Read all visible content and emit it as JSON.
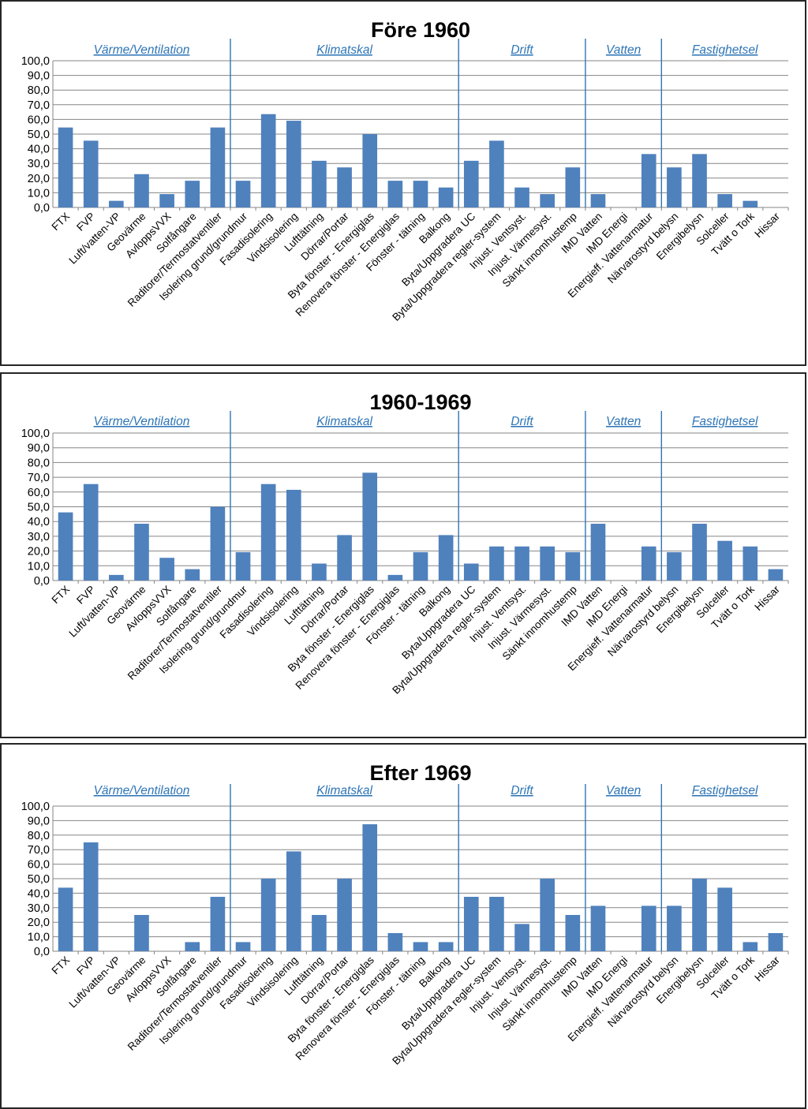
{
  "chart_data": [
    {
      "type": "bar",
      "title": "Före 1960",
      "ylim": [
        0,
        100
      ],
      "yticks": [
        "0,0",
        "10,0",
        "20,0",
        "30,0",
        "40,0",
        "50,0",
        "60,0",
        "70,0",
        "80,0",
        "90,0",
        "100,0"
      ],
      "grid": true,
      "categories": [
        "FTX",
        "FVP",
        "Luft/vatten-VP",
        "Geovärme",
        "AvloppsVVX",
        "Solfångare",
        "Raditorer/Termostatventiler",
        "Isolering grund/grundmur",
        "Fasadisolering",
        "Vindsisolering",
        "Lufttätning",
        "Dörrar/Portar",
        "Byta fönster - Energiglas",
        "Renovera fönster - Energiglas",
        "Fönster - tätning",
        "Balkong",
        "Byta/Uppgradera UC",
        "Byta/Uppgradera regler-system",
        "Injust. Ventsyst.",
        "Injust. Värmesyst.",
        "Sänkt innomhustemp",
        "IMD Vatten",
        "IMD Energi",
        "Energieff. Vattenarmatur",
        "Närvarostyrd belysn",
        "Energibelysn",
        "Solceller",
        "Tvätt o Tork",
        "Hissar"
      ],
      "values": [
        54.5,
        45.5,
        4.5,
        22.7,
        9.1,
        18.2,
        54.5,
        18.2,
        63.6,
        59.1,
        31.8,
        27.3,
        50.0,
        18.2,
        18.2,
        13.6,
        31.8,
        45.5,
        13.6,
        9.1,
        27.3,
        9.1,
        0,
        36.4,
        27.3,
        36.4,
        9.1,
        4.5,
        0
      ],
      "groups": [
        {
          "label": "Värme/Ventilation",
          "start": 0,
          "end": 6
        },
        {
          "label": "Klimatskal",
          "start": 7,
          "end": 15
        },
        {
          "label": "Drift",
          "start": 16,
          "end": 20
        },
        {
          "label": "Vatten",
          "start": 21,
          "end": 23
        },
        {
          "label": "Fastighetsel",
          "start": 24,
          "end": 28
        }
      ]
    },
    {
      "type": "bar",
      "title": "1960-1969",
      "ylim": [
        0,
        100
      ],
      "yticks": [
        "0,0",
        "10,0",
        "20,0",
        "30,0",
        "40,0",
        "50,0",
        "60,0",
        "70,0",
        "80,0",
        "90,0",
        "100,0"
      ],
      "grid": true,
      "categories": [
        "FTX",
        "FVP",
        "Luft/vatten-VP",
        "Geovärme",
        "AvloppsVVX",
        "Solfångare",
        "Raditorer/Termostatventiler",
        "Isolering grund/grundmur",
        "Fasadisolering",
        "Vindsisolering",
        "Lufttätning",
        "Dörrar/Portar",
        "Byta fönster - Energiglas",
        "Renovera fönster - Energiglas",
        "Fönster - tätning",
        "Balkong",
        "Byta/Uppgradera UC",
        "Byta/Uppgradera regler-system",
        "Injust. Ventsyst.",
        "Injust. Värmesyst.",
        "Sänkt innomhustemp",
        "IMD Vatten",
        "IMD Energi",
        "Energieff. Vattenarmatur",
        "Närvarostyrd belysn",
        "Energibelysn",
        "Solceller",
        "Tvätt o Tork",
        "Hissar"
      ],
      "values": [
        46.2,
        65.4,
        3.8,
        38.5,
        15.4,
        7.7,
        50.0,
        19.2,
        65.4,
        61.5,
        11.5,
        30.8,
        73.1,
        3.8,
        19.2,
        30.8,
        11.5,
        23.1,
        23.1,
        23.1,
        19.2,
        38.5,
        0,
        23.1,
        19.2,
        38.5,
        26.9,
        23.1,
        7.7
      ],
      "groups": [
        {
          "label": "Värme/Ventilation",
          "start": 0,
          "end": 6
        },
        {
          "label": "Klimatskal",
          "start": 7,
          "end": 15
        },
        {
          "label": "Drift",
          "start": 16,
          "end": 20
        },
        {
          "label": "Vatten",
          "start": 21,
          "end": 23
        },
        {
          "label": "Fastighetsel",
          "start": 24,
          "end": 28
        }
      ]
    },
    {
      "type": "bar",
      "title": "Efter 1969",
      "ylim": [
        0,
        100
      ],
      "yticks": [
        "0,0",
        "10,0",
        "20,0",
        "30,0",
        "40,0",
        "50,0",
        "60,0",
        "70,0",
        "80,0",
        "90,0",
        "100,0"
      ],
      "grid": true,
      "categories": [
        "FTX",
        "FVP",
        "Luft/vatten-VP",
        "Geovärme",
        "AvloppsVVX",
        "Solfångare",
        "Raditorer/Termostatventiler",
        "Isolering grund/grundmur",
        "Fasadisolering",
        "Vindsisolering",
        "Lufttätning",
        "Dörrar/Portar",
        "Byta fönster - Energiglas",
        "Renovera fönster - Energiglas",
        "Fönster - tätning",
        "Balkong",
        "Byta/Uppgradera UC",
        "Byta/Uppgradera regler-system",
        "Injust. Ventsyst.",
        "Injust. Värmesyst.",
        "Sänkt innomhustemp",
        "IMD Vatten",
        "IMD Energi",
        "Energieff. Vattenarmatur",
        "Närvarostyrd belysn",
        "Energibelysn",
        "Solceller",
        "Tvätt o Tork",
        "Hissar"
      ],
      "values": [
        43.8,
        75.0,
        0,
        25.0,
        0,
        6.3,
        37.5,
        6.3,
        50.0,
        68.8,
        25.0,
        50.0,
        87.5,
        12.5,
        6.3,
        6.3,
        37.5,
        37.5,
        18.8,
        50.0,
        25.0,
        31.3,
        0,
        31.3,
        31.3,
        50.0,
        43.8,
        6.3,
        12.5
      ],
      "groups": [
        {
          "label": "Värme/Ventilation",
          "start": 0,
          "end": 6
        },
        {
          "label": "Klimatskal",
          "start": 7,
          "end": 15
        },
        {
          "label": "Drift",
          "start": 16,
          "end": 20
        },
        {
          "label": "Vatten",
          "start": 21,
          "end": 23
        },
        {
          "label": "Fastighetsel",
          "start": 24,
          "end": 28
        }
      ]
    }
  ]
}
